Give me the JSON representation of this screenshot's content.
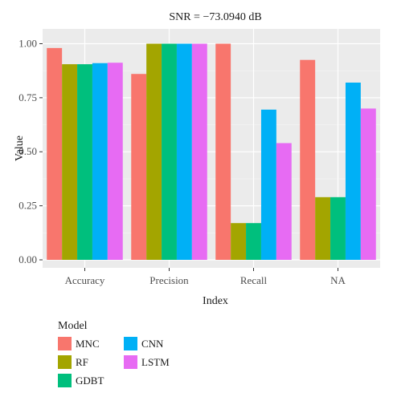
{
  "chart_data": {
    "type": "bar",
    "title": "SNR = −73.0940 dB",
    "xlabel": "Index",
    "ylabel": "Value",
    "categories": [
      "Accuracy",
      "Precision",
      "Recall",
      "NA"
    ],
    "ylim": [
      0,
      1.05
    ],
    "yticks": [
      0,
      0.25,
      0.5,
      0.75,
      1.0
    ],
    "ytick_labels": [
      "0.00",
      "0.25",
      "0.50",
      "0.75",
      "1.00"
    ],
    "grid": true,
    "legend_title": "Model",
    "legend_position": "bottom-left",
    "series": [
      {
        "name": "MNC",
        "color": "#F8766D",
        "values": [
          0.98,
          0.86,
          1.0,
          0.925
        ]
      },
      {
        "name": "RF",
        "color": "#A3A500",
        "values": [
          0.905,
          1.0,
          0.17,
          0.29
        ]
      },
      {
        "name": "GDBT",
        "color": "#00BF7D",
        "values": [
          0.905,
          1.0,
          0.17,
          0.29
        ]
      },
      {
        "name": "CNN",
        "color": "#00B0F6",
        "values": [
          0.91,
          1.0,
          0.695,
          0.82
        ]
      },
      {
        "name": "LSTM",
        "color": "#E76BF3",
        "values": [
          0.912,
          1.0,
          0.54,
          0.7
        ]
      }
    ]
  }
}
